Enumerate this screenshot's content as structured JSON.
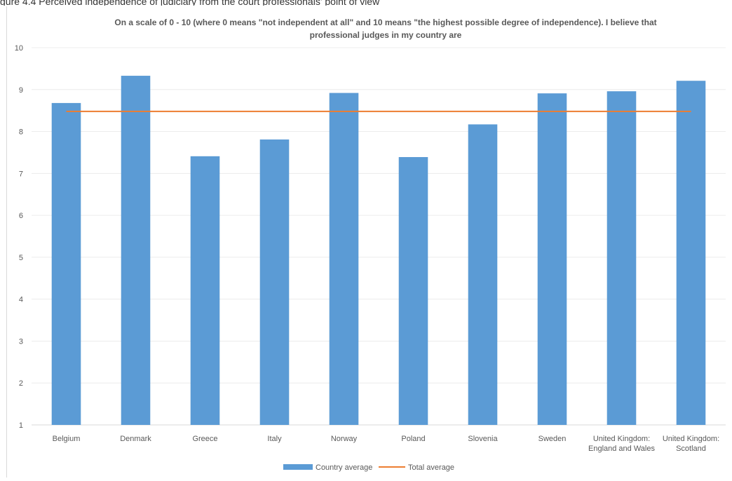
{
  "caption": "gure 4.4 Perceived independence of judiciary from the court professionals' point of view",
  "chart_data": {
    "type": "bar",
    "title": "On a scale of 0 - 10 (where 0 means \"not independent at all\" and 10 means \"the highest possible degree of independence). I believe that professional judges in my country are",
    "categories": [
      [
        "Belgium"
      ],
      [
        "Denmark"
      ],
      [
        "Greece"
      ],
      [
        "Italy"
      ],
      [
        "Norway"
      ],
      [
        "Poland"
      ],
      [
        "Slovenia"
      ],
      [
        "Sweden"
      ],
      [
        "United Kingdom:",
        "England and Wales"
      ],
      [
        "United Kingdom:",
        "Scotland"
      ]
    ],
    "series": [
      {
        "name": "Country average",
        "type": "bar",
        "color": "#5b9bd5",
        "values": [
          8.68,
          9.33,
          7.41,
          7.81,
          8.92,
          7.39,
          8.17,
          8.91,
          8.96,
          9.21
        ]
      },
      {
        "name": "Total average",
        "type": "line",
        "color": "#ed7d31",
        "values": [
          8.48,
          8.48,
          8.48,
          8.48,
          8.48,
          8.48,
          8.48,
          8.48,
          8.48,
          8.48
        ]
      }
    ],
    "y_ticks": [
      "1",
      "2",
      "3",
      "4",
      "5",
      "6",
      "7",
      "8",
      "9",
      "10"
    ],
    "ylim": [
      1,
      10
    ],
    "grid": true,
    "legend_position": "bottom"
  }
}
